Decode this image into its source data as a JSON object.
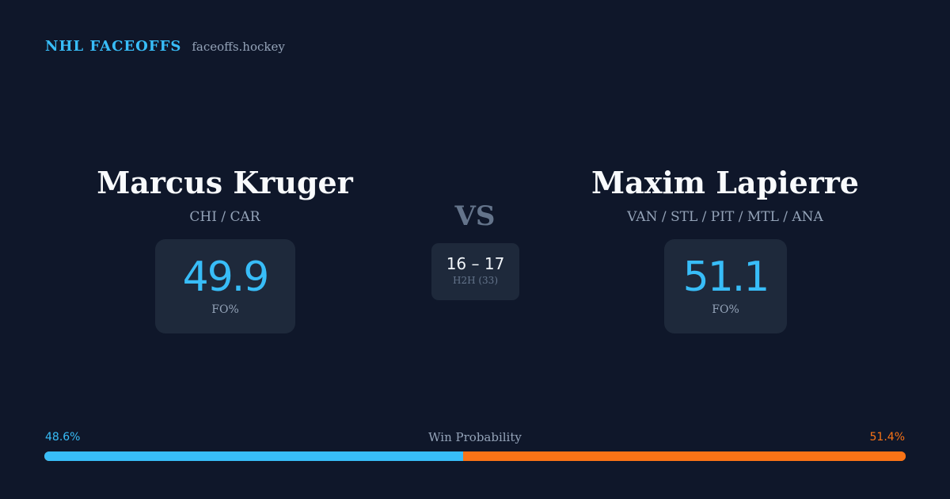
{
  "brand": {
    "name": "NHL FACEOFFS",
    "site": "faceoffs.hockey"
  },
  "players": {
    "left": {
      "name": "Marcus Kruger",
      "teams": "CHI / CAR",
      "stat_value": "49.9",
      "stat_label": "FO%"
    },
    "right": {
      "name": "Maxim Lapierre",
      "teams": "VAN / STL / PIT / MTL / ANA",
      "stat_value": "51.1",
      "stat_label": "FO%"
    }
  },
  "versus": {
    "label": "VS",
    "score": "16 – 17",
    "h2h_label": "H2H (33)"
  },
  "win_probability": {
    "title": "Win Probability",
    "left_label": "48.6%",
    "right_label": "51.4%",
    "left_value": 48.6,
    "right_value": 51.4
  },
  "colors": {
    "background": "#0f172a",
    "card": "#1e293b",
    "accent_blue": "#38bdf8",
    "accent_orange": "#f97316"
  }
}
